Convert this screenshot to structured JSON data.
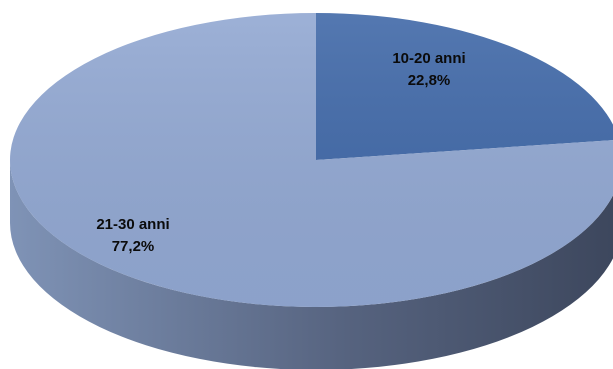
{
  "chart_data": {
    "type": "pie",
    "style": "3d",
    "title": "",
    "slices": [
      {
        "label": "10-20 anni",
        "value": 22.8,
        "display": "22,8%",
        "color": "#4169A8"
      },
      {
        "label": "21-30 anni",
        "value": 77.2,
        "display": "77,2%",
        "color": "#92A8D2"
      }
    ],
    "legend": "none",
    "side_color_light": "#7F93B6",
    "side_color_dark": "#3C465C"
  }
}
